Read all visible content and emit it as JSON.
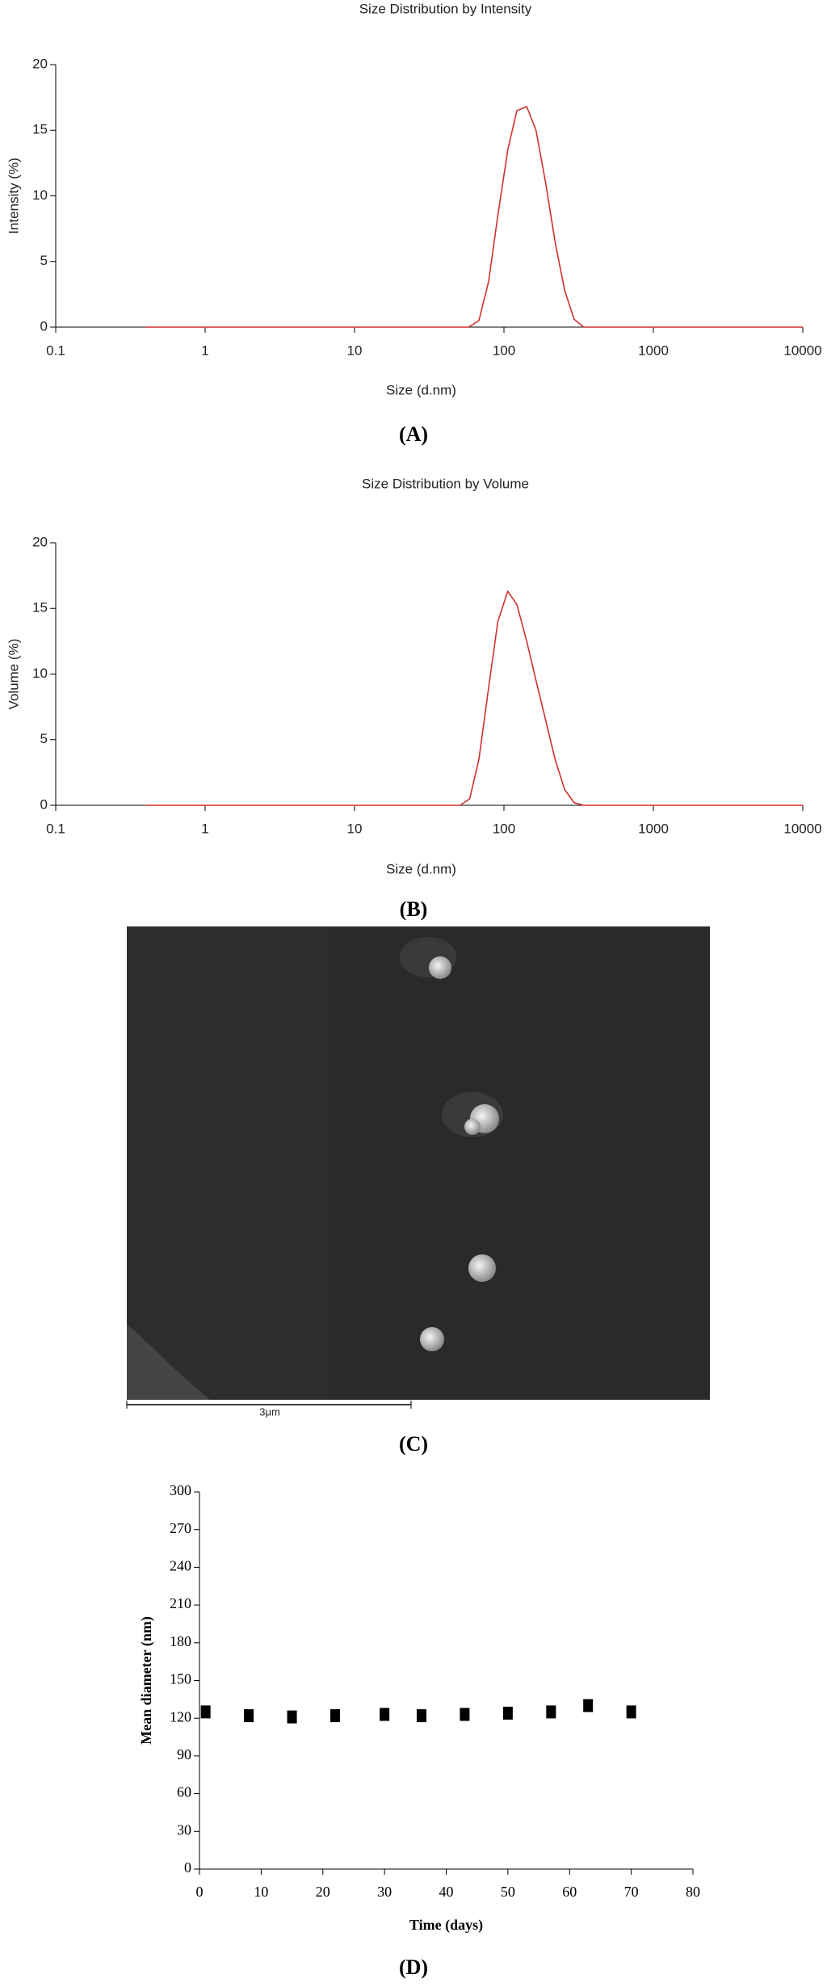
{
  "chart_data": [
    {
      "type": "line",
      "title": "Size Distribution by Intensity",
      "x_label": "Size (d.nm)",
      "y_label": "Intensity (%)",
      "panel_label": "(A)",
      "log_x": true,
      "color": "#d03030",
      "x": [
        0.4,
        58,
        68,
        79,
        91,
        106,
        122,
        142,
        164,
        190,
        220,
        255,
        295,
        342,
        10000
      ],
      "values": [
        0,
        0,
        0.5,
        3.5,
        8.5,
        13.5,
        16.5,
        16.8,
        15,
        11,
        6.5,
        2.8,
        0.6,
        0,
        0
      ],
      "xlim": [
        0.1,
        10000
      ],
      "xticks": [
        0.1,
        1,
        10,
        100,
        1000,
        10000
      ],
      "ylim": [
        0,
        20
      ],
      "yticks": [
        0,
        5,
        10,
        15,
        20
      ]
    },
    {
      "type": "line",
      "title": "Size Distribution by Volume",
      "x_label": "Size (d.nm)",
      "y_label": "Volume (%)",
      "panel_label": "(B)",
      "log_x": true,
      "color": "#d03030",
      "x": [
        0.4,
        51,
        59,
        68,
        79,
        91,
        106,
        122,
        142,
        164,
        190,
        220,
        255,
        295,
        342,
        10000
      ],
      "values": [
        0,
        0,
        0.5,
        3.5,
        9,
        14,
        16.3,
        15.3,
        12.5,
        9.5,
        6.5,
        3.5,
        1.2,
        0.2,
        0,
        0
      ],
      "xlim": [
        0.1,
        10000
      ],
      "xticks": [
        0.1,
        1,
        10,
        100,
        1000,
        10000
      ],
      "ylim": [
        0,
        20
      ],
      "yticks": [
        0,
        5,
        10,
        15,
        20
      ]
    },
    {
      "type": "scatter",
      "x_label": "Time (days)",
      "y_label": "Mean diameter (nm)",
      "panel_label": "(D)",
      "color": "#000000",
      "x": [
        1,
        8,
        15,
        22,
        30,
        36,
        43,
        50,
        57,
        63,
        70
      ],
      "values": [
        125,
        122,
        121,
        122,
        123,
        122,
        123,
        124,
        125,
        130,
        125
      ],
      "xlim": [
        0,
        80
      ],
      "xticks": [
        0,
        10,
        20,
        30,
        40,
        50,
        60,
        70,
        80
      ],
      "ylim": [
        0,
        300
      ],
      "yticks": [
        0,
        30,
        60,
        90,
        120,
        150,
        180,
        210,
        240,
        270,
        300
      ]
    }
  ],
  "image_panel": {
    "scale_label": "3μm",
    "panel_label": "(C)"
  }
}
